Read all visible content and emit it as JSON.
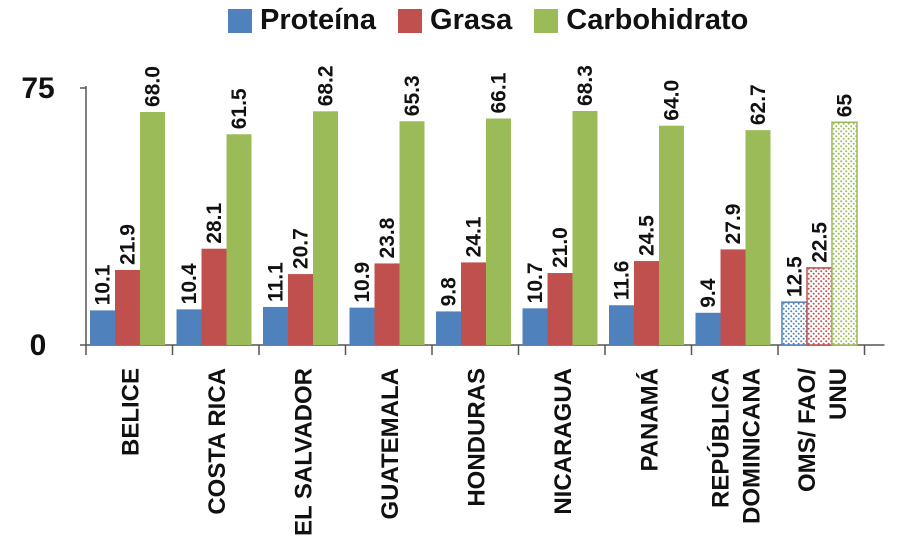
{
  "chart_data": {
    "type": "bar",
    "categories": [
      "BELICE",
      "COSTA RICA",
      "EL SALVADOR",
      "GUATEMALA",
      "HONDURAS",
      "NICARAGUA",
      "PANAMÁ",
      "REPÚBLICA DOMINICANA",
      "OMS/ FAO/ UNU"
    ],
    "category_lines": [
      [
        "BELICE"
      ],
      [
        "COSTA RICA"
      ],
      [
        "EL SALVADOR"
      ],
      [
        "GUATEMALA"
      ],
      [
        "HONDURAS"
      ],
      [
        "NICARAGUA"
      ],
      [
        "PANAMÁ"
      ],
      [
        "REPÚBLICA",
        "DOMINICANA"
      ],
      [
        "OMS/ FAO/",
        "UNU"
      ]
    ],
    "series": [
      {
        "name": "Proteína",
        "color": "#4f81bd",
        "values": [
          10.1,
          10.4,
          11.1,
          10.9,
          9.8,
          10.7,
          11.6,
          9.4,
          12.5
        ],
        "labels": [
          "10.1",
          "10.4",
          "11.1",
          "10.9",
          "9.8",
          "10.7",
          "11.6",
          "9.4",
          "12.5"
        ]
      },
      {
        "name": "Grasa",
        "color": "#c0504d",
        "values": [
          21.9,
          28.1,
          20.7,
          23.8,
          24.1,
          21.0,
          24.5,
          27.9,
          22.5
        ],
        "labels": [
          "21.9",
          "28.1",
          "20.7",
          "23.8",
          "24.1",
          "21.0",
          "24.5",
          "27.9",
          "22.5"
        ]
      },
      {
        "name": "Carbohidrato",
        "color": "#9bbb59",
        "values": [
          68.0,
          61.5,
          68.2,
          65.3,
          66.1,
          68.3,
          64.0,
          62.7,
          65
        ],
        "labels": [
          "68.0",
          "61.5",
          "68.2",
          "65.3",
          "66.1",
          "68.3",
          "64.0",
          "62.7",
          "65"
        ]
      }
    ],
    "patterned_category": "OMS/ FAO/ UNU",
    "yticks": [
      "0",
      "75"
    ],
    "ylim": [
      0,
      75
    ],
    "legend_position": "top",
    "grid": false
  }
}
